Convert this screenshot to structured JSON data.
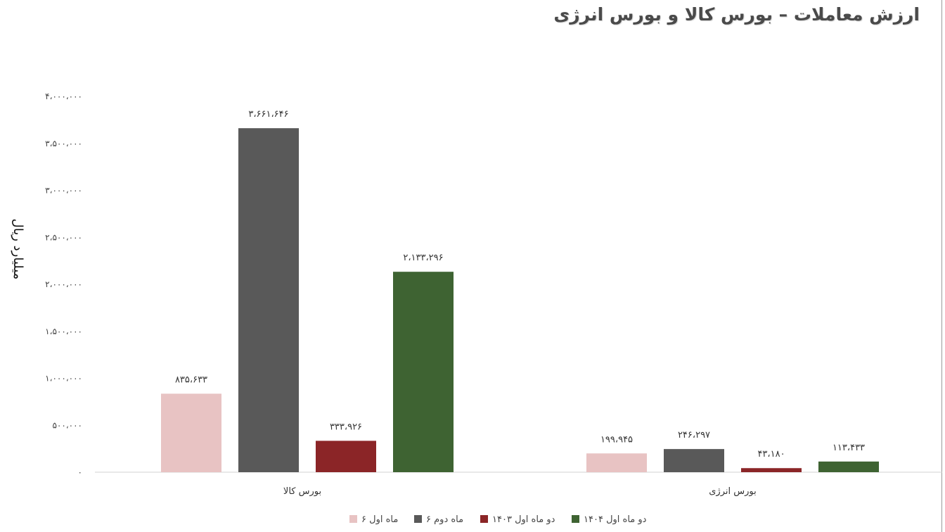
{
  "chart_data": {
    "type": "bar",
    "title": "ارزش معاملات – بورس کالا و بورس انرژی",
    "ylabel": "میلیارد ریال",
    "ylim": [
      0,
      4000000
    ],
    "yticks": [
      0,
      500000,
      1000000,
      1500000,
      2000000,
      2500000,
      3000000,
      3500000,
      4000000
    ],
    "ytick_labels": [
      "۰",
      "۵۰۰،۰۰۰",
      "۱،۰۰۰،۰۰۰",
      "۱،۵۰۰،۰۰۰",
      "۲،۰۰۰،۰۰۰",
      "۲،۵۰۰،۰۰۰",
      "۳،۰۰۰،۰۰۰",
      "۳،۵۰۰،۰۰۰",
      "۴،۰۰۰،۰۰۰"
    ],
    "categories": [
      "بورس کالا",
      "بورس انرژی"
    ],
    "series": [
      {
        "name": "۶ ماه اول",
        "color": "#e8c3c3",
        "values": [
          835633,
          199945
        ],
        "labels": [
          "۸۳۵،۶۳۳",
          "۱۹۹،۹۴۵"
        ]
      },
      {
        "name": "۶ ماه دوم",
        "color": "#595959",
        "values": [
          3661646,
          246297
        ],
        "labels": [
          "۳،۶۶۱،۶۴۶",
          "۲۴۶،۲۹۷"
        ]
      },
      {
        "name": "دو ماه اول ۱۴۰۳",
        "color": "#8b2527",
        "values": [
          333926,
          43180
        ],
        "labels": [
          "۳۳۳،۹۲۶",
          "۴۳،۱۸۰"
        ]
      },
      {
        "name": "دو ماه اول ۱۴۰۴",
        "color": "#3e6332",
        "values": [
          2133296,
          113433
        ],
        "labels": [
          "۲،۱۳۳،۲۹۶",
          "۱۱۳،۴۳۳"
        ]
      }
    ],
    "grid": false,
    "legend": "bottom"
  }
}
